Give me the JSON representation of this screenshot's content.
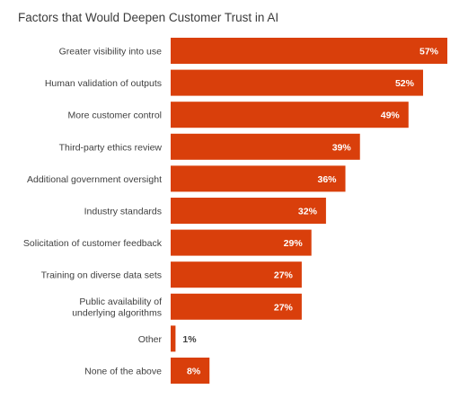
{
  "chart_data": {
    "type": "bar",
    "orientation": "horizontal",
    "title": "Factors that Would Deepen Customer Trust in AI",
    "xlabel": "",
    "ylabel": "",
    "categories": [
      "Greater visibility into use",
      "Human validation of outputs",
      "More customer control",
      "Third-party ethics review",
      "Additional government oversight",
      "Industry standards",
      "Solicitation of customer feedback",
      "Training on diverse data sets",
      "Public availability of underlying algorithms",
      "Other",
      "None of the above"
    ],
    "category_lines": [
      [
        "Greater visibility into use"
      ],
      [
        "Human validation of outputs"
      ],
      [
        "More customer control"
      ],
      [
        "Third-party ethics review"
      ],
      [
        "Additional government oversight"
      ],
      [
        "Industry standards"
      ],
      [
        "Solicitation of customer feedback"
      ],
      [
        "Training on diverse data sets"
      ],
      [
        "Public availability of",
        "underlying algorithms"
      ],
      [
        "Other"
      ],
      [
        "None of the above"
      ]
    ],
    "values": [
      57,
      52,
      49,
      39,
      36,
      32,
      29,
      27,
      27,
      1,
      8
    ],
    "value_labels": [
      "57%",
      "52%",
      "49%",
      "39%",
      "36%",
      "32%",
      "29%",
      "27%",
      "27%",
      "1%",
      "8%"
    ],
    "xlim": [
      0,
      57
    ],
    "grid": false,
    "legend": "none",
    "colors": {
      "bar": "#d93f0b",
      "label_inside": "#ffffff",
      "label_outside": "#3f3f3f"
    }
  }
}
